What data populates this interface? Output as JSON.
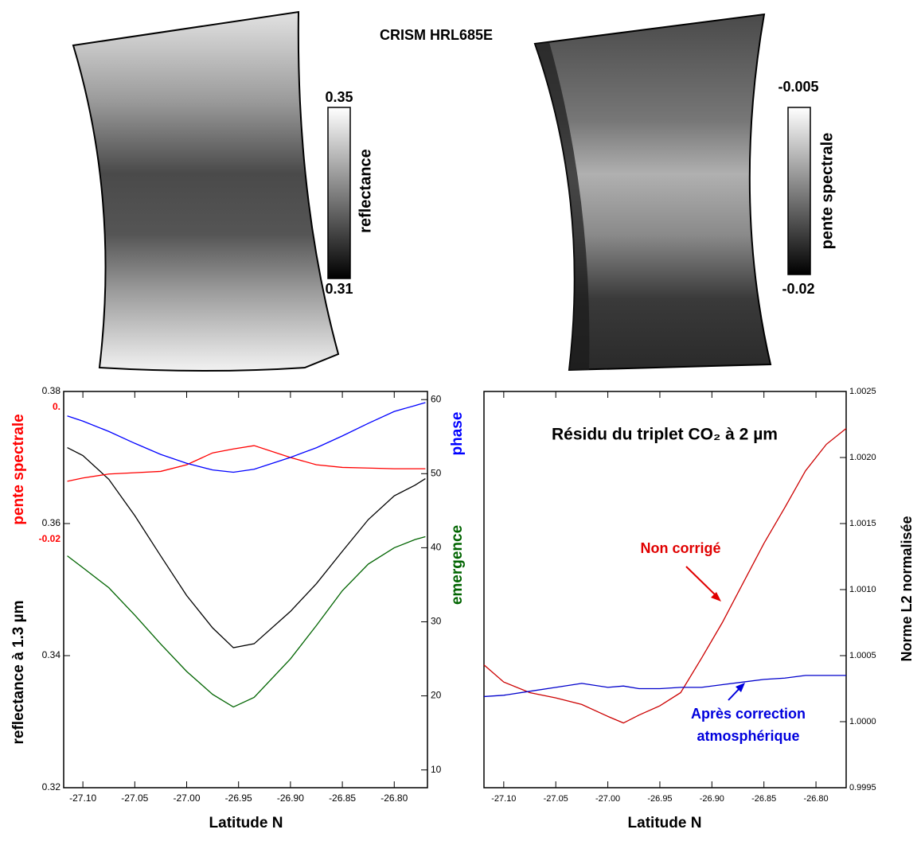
{
  "title": "CRISM HRL685E",
  "maps": [
    {
      "colorbar_label": "reflectance",
      "colorbar_max": 0.35,
      "colorbar_min": 0.31
    },
    {
      "colorbar_label": "pente spectrale",
      "colorbar_max": -0.005,
      "colorbar_min": -0.02
    }
  ],
  "chart_data": [
    {
      "type": "line",
      "x_label": "Latitude N",
      "x": [
        -27.115,
        -27.1,
        -27.075,
        -27.05,
        -27.025,
        -27.0,
        -26.975,
        -26.955,
        -26.935,
        -26.9,
        -26.875,
        -26.85,
        -26.825,
        -26.8,
        -26.78,
        -26.77
      ],
      "xlim": [
        -27.1185,
        -26.768
      ],
      "xticks": [
        {
          "value": -27.1,
          "label": "-27.10"
        },
        {
          "value": -27.05,
          "label": "-27.05"
        },
        {
          "value": -27.0,
          "label": "-27.00"
        },
        {
          "value": -26.95,
          "label": "-26.95"
        },
        {
          "value": -26.9,
          "label": "-26.90"
        },
        {
          "value": -26.85,
          "label": "-26.85"
        },
        {
          "value": -26.8,
          "label": "-26.80"
        }
      ],
      "ylim": [
        0.32,
        0.38
      ],
      "yticks": [
        0.32,
        0.34,
        0.36,
        0.38
      ],
      "y2lim": [
        7.6,
        61.1
      ],
      "y2ticks": [
        10,
        20,
        30,
        40,
        50,
        60
      ],
      "y3lim": [
        -0.0576,
        0.0024
      ],
      "y3ticks": [
        {
          "value": 0,
          "label": "0."
        },
        -0.02
      ],
      "series": [
        {
          "name": "reflectance  à 1.3 µm",
          "color": "#000000",
          "axis": "y",
          "values": [
            0.3715,
            0.3703,
            0.3667,
            0.3612,
            0.3551,
            0.3491,
            0.3442,
            0.3412,
            0.3418,
            0.3467,
            0.3509,
            0.3558,
            0.3606,
            0.3642,
            0.3658,
            0.3668
          ]
        },
        {
          "name": "pente spectrale",
          "color": "#ff0000",
          "axis": "y3",
          "values": [
            -0.0112,
            -0.0107,
            -0.0101,
            -0.0099,
            -0.0097,
            -0.0087,
            -0.0069,
            -0.0063,
            -0.0058,
            -0.0076,
            -0.0087,
            -0.0091,
            -0.0092,
            -0.0093,
            -0.0093,
            -0.0093
          ]
        },
        {
          "name": "phase",
          "color": "#0000ff",
          "axis": "y2",
          "values": [
            57.8,
            57.1,
            55.7,
            54.1,
            52.6,
            51.4,
            50.5,
            50.2,
            50.6,
            52.2,
            53.5,
            55.1,
            56.8,
            58.4,
            59.2,
            59.6
          ]
        },
        {
          "name": "emergence",
          "color": "#006400",
          "axis": "y2",
          "values": [
            38.9,
            37.3,
            34.6,
            30.9,
            27.0,
            23.3,
            20.2,
            18.5,
            19.8,
            25.0,
            29.5,
            34.2,
            37.8,
            40.0,
            41.1,
            41.5
          ]
        }
      ]
    },
    {
      "type": "line",
      "title": "Résidu du triplet CO₂ à 2 µm",
      "x_label": "Latitude N",
      "y_label": "Norme L2 normalisée",
      "annotations": [
        "Non corrigé",
        "Après correction",
        "atmosphérique"
      ],
      "x": [
        -27.119,
        -27.1,
        -27.075,
        -27.05,
        -27.025,
        -27.0,
        -26.985,
        -26.97,
        -26.95,
        -26.93,
        -26.91,
        -26.89,
        -26.87,
        -26.85,
        -26.83,
        -26.81,
        -26.79,
        -26.771
      ],
      "xlim": [
        -27.119,
        -26.771
      ],
      "xticks": [
        {
          "value": -27.1,
          "label": "-27.10"
        },
        {
          "value": -27.05,
          "label": "-27.05"
        },
        {
          "value": -27.0,
          "label": "-27.00"
        },
        {
          "value": -26.95,
          "label": "-26.95"
        },
        {
          "value": -26.9,
          "label": "-26.90"
        },
        {
          "value": -26.85,
          "label": "-26.85"
        },
        {
          "value": -26.8,
          "label": "-26.80"
        }
      ],
      "ylim": [
        0.9995,
        1.0025
      ],
      "yticks": [
        0.9995,
        {
          "value": 1,
          "label": "1.0000"
        },
        1.0005,
        {
          "value": 1.001,
          "label": "1.0010"
        },
        1.0015,
        {
          "value": 1.002,
          "label": "1.0020"
        },
        1.0025
      ],
      "series": [
        {
          "color": "#cc0000",
          "axis": "y",
          "values": [
            1.00043,
            1.0003,
            1.00022,
            1.00018,
            1.00013,
            1.00004,
            0.99999,
            1.00005,
            1.00012,
            1.00022,
            1.00048,
            1.00075,
            1.00105,
            1.00135,
            1.00162,
            1.0019,
            1.0021,
            1.00222
          ]
        },
        {
          "color": "#0000cc",
          "axis": "y",
          "values": [
            1.00019,
            1.0002,
            1.00023,
            1.00026,
            1.00029,
            1.00026,
            1.00027,
            1.00025,
            1.00025,
            1.00026,
            1.00026,
            1.00028,
            1.0003,
            1.00032,
            1.00033,
            1.00035,
            1.00035,
            1.00035
          ]
        }
      ]
    }
  ]
}
